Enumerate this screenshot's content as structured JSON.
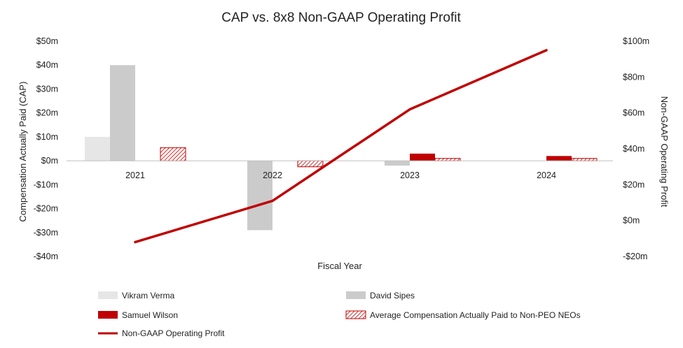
{
  "chart_data": {
    "type": "bar",
    "title": "CAP vs. 8x8 Non-GAAP Operating Profit",
    "xlabel": "Fiscal Year",
    "ylabel": "Compensation Actually Paid (CAP)",
    "y2label": "Non-GAAP Operating Profit",
    "categories": [
      "2021",
      "2022",
      "2023",
      "2024"
    ],
    "ylim": [
      -40,
      50
    ],
    "yticks": [
      50,
      40,
      30,
      20,
      10,
      0,
      -10,
      -20,
      -30,
      -40
    ],
    "ytick_labels": [
      "$50m",
      "$40m",
      "$30m",
      "$20m",
      "$10m",
      "$0m",
      "-$10m",
      "-$20m",
      "-$30m",
      "-$40m"
    ],
    "y2lim": [
      -20,
      100
    ],
    "y2ticks": [
      100,
      80,
      60,
      40,
      20,
      0,
      -20
    ],
    "y2tick_labels": [
      "$100m",
      "$80m",
      "$60m",
      "$40m",
      "$20m",
      "$0m",
      "-$20m"
    ],
    "series": [
      {
        "name": "Vikram Verma",
        "kind": "bar",
        "style": "light-gray",
        "values": [
          10,
          null,
          null,
          null
        ]
      },
      {
        "name": "David Sipes",
        "kind": "bar",
        "style": "gray",
        "values": [
          40,
          -29,
          -2,
          null
        ]
      },
      {
        "name": "Samuel Wilson",
        "kind": "bar",
        "style": "red",
        "values": [
          null,
          null,
          3,
          2
        ]
      },
      {
        "name": "Average Compensation Actually Paid to Non-PEO NEOs",
        "kind": "bar",
        "style": "red-hatched",
        "values": [
          5.5,
          -2.5,
          1,
          1
        ]
      },
      {
        "name": "Non-GAAP Operating Profit",
        "kind": "line",
        "axis": "right",
        "style": "red-line",
        "values": [
          -12,
          11,
          62,
          95
        ]
      }
    ],
    "legend_position": "bottom"
  },
  "colors": {
    "light_gray": "#e6e6e6",
    "gray": "#cbcbcb",
    "red": "#c00000",
    "line_red": "#c00000",
    "text": "#222222"
  }
}
